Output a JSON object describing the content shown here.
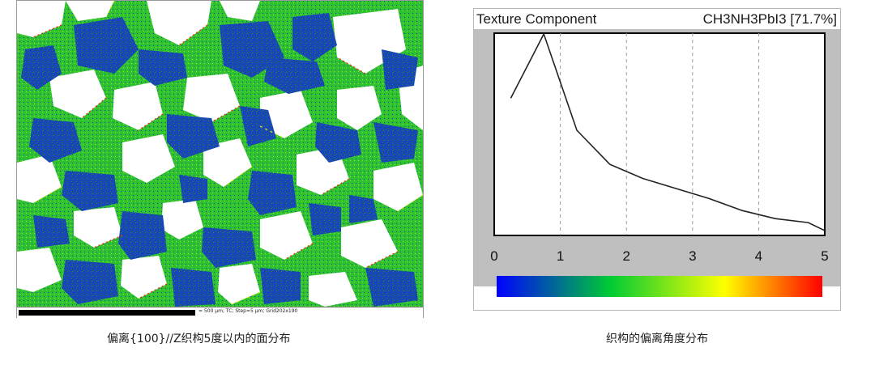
{
  "map": {
    "scale_text": "= 500 µm; TC; Step=5 µm; Grid202x190",
    "caption": "偏离{100}//Z织构5度以内的面分布",
    "colors": {
      "blue": "#1746b8",
      "green": "#2fc22f",
      "yellow": "#e8e82a",
      "red": "#e23a12",
      "background": "#ffffff"
    }
  },
  "chart": {
    "caption": "织构的偏离角度分布"
  },
  "chart_data": {
    "type": "line",
    "title": "Texture Component",
    "series_label": "CH3NH3PbI3 [71.7%]",
    "xlabel": "",
    "ylabel": "",
    "xlim": [
      0,
      5
    ],
    "x_ticks": [
      "0",
      "1",
      "2",
      "3",
      "4",
      "5"
    ],
    "grid": "vertical dashed at 1, 2, 3, 4",
    "colorbar": [
      "#0000ff",
      "#00cc33",
      "#ffff00",
      "#ff0000"
    ],
    "series": [
      {
        "x": [
          0.25,
          0.75,
          1.25,
          1.75,
          2.25,
          2.75,
          3.25,
          3.75,
          4.25,
          4.75,
          5.0
        ],
        "y": [
          0.68,
          1.0,
          0.52,
          0.35,
          0.28,
          0.23,
          0.18,
          0.12,
          0.08,
          0.06,
          0.02
        ]
      }
    ]
  }
}
